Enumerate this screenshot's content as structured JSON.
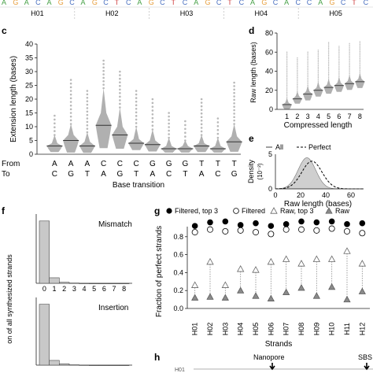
{
  "colors": {
    "axis": "#222222",
    "bar_fill": "#c8c8c8",
    "bar_stroke": "#4a4a4a",
    "outlier": "#b8b8b8",
    "box_fill": "#b0b0b0",
    "median": "#333333",
    "filled_point": "#000000",
    "raw_point": "#8a8a8a",
    "density_fill": "#cfcfcf",
    "seq_orange": "#e8a040",
    "seq_green": "#46a046",
    "seq_blue": "#4a70c0"
  },
  "top_strip": {
    "sequence": "AGACAGCAGCTCAGCTCAGCTCAGCACCAGCTC",
    "labels": [
      "H01",
      "H02",
      "H03",
      "H04",
      "H05"
    ]
  },
  "panel_labels": {
    "c": "c",
    "d": "d",
    "e": "e",
    "f": "f",
    "g": "g",
    "h": "h"
  },
  "chart_data": [
    {
      "id": "c",
      "type": "violin-box",
      "ylabel": "Extension length (bases)",
      "ylim": [
        0,
        40
      ],
      "yticks": [
        0,
        5,
        10,
        15,
        20,
        25,
        30,
        35,
        40
      ],
      "xlabel": "Base transition",
      "row_labels": [
        "From",
        "To"
      ],
      "from": [
        "A",
        "A",
        "A",
        "C",
        "C",
        "C",
        "G",
        "G",
        "G",
        "T",
        "T",
        "T"
      ],
      "to": [
        "C",
        "G",
        "T",
        "A",
        "G",
        "T",
        "A",
        "C",
        "T",
        "A",
        "C",
        "G"
      ],
      "medians": [
        3,
        5,
        3,
        10.5,
        7,
        4,
        3.5,
        2,
        2,
        3,
        2,
        4.5
      ],
      "q1": [
        2,
        3,
        2,
        7,
        5,
        3,
        2.5,
        1.5,
        1.5,
        2,
        1.5,
        3
      ],
      "q3": [
        4,
        7,
        4.5,
        15,
        10,
        5.5,
        5,
        3,
        3,
        4,
        3,
        6.5
      ],
      "p95": [
        7,
        11,
        8,
        24,
        17,
        10,
        9,
        6,
        5,
        7,
        6,
        11
      ],
      "max": [
        14,
        27,
        23,
        34,
        30,
        23,
        20,
        15,
        12,
        20,
        13,
        26
      ]
    },
    {
      "id": "d",
      "type": "violin-box",
      "ylabel": "Raw length (bases)",
      "xlabel": "Compressed length",
      "ylim": [
        0,
        80
      ],
      "yticks": [
        0,
        20,
        40,
        60,
        80
      ],
      "categories": [
        1,
        2,
        3,
        4,
        5,
        6,
        7,
        8
      ],
      "medians": [
        5,
        11,
        16,
        20,
        23,
        25,
        27,
        29
      ],
      "q1": [
        2,
        9,
        13,
        17,
        20,
        22,
        24,
        26
      ],
      "q3": [
        7,
        14,
        19,
        23,
        26,
        28,
        30,
        32
      ],
      "max": [
        60,
        54,
        60,
        62,
        70,
        66,
        69,
        71
      ]
    },
    {
      "id": "e",
      "type": "area",
      "ylabel": "Density",
      "ylabel2": "(10⁻²)",
      "xlabel": "Raw length (bases)",
      "xlim": [
        0,
        70
      ],
      "xticks": [
        0,
        20,
        40,
        60
      ],
      "ylim": [
        0,
        5
      ],
      "yticks": [
        0,
        5
      ],
      "legend": [
        "All",
        "Perfect"
      ],
      "series": [
        {
          "name": "All",
          "peak_x": 25,
          "sd": 7,
          "peak_y": 4.5
        },
        {
          "name": "Perfect",
          "peak_x": 29,
          "sd": 8,
          "peak_y": 4.0
        }
      ]
    },
    {
      "id": "f",
      "type": "bar",
      "ylabel": "on of all synthesized strands",
      "xticks": [
        0,
        1,
        2,
        3,
        4,
        5,
        6,
        7,
        8
      ],
      "subplots": [
        {
          "name": "Mismatch",
          "values": [
            0.9,
            0.08,
            0.015,
            0.004,
            0.001,
            0,
            0,
            0,
            0
          ]
        },
        {
          "name": "Insertion",
          "values": [
            0.9,
            0.07,
            0.02,
            0.005,
            0.002,
            0,
            0,
            0,
            0
          ]
        }
      ]
    },
    {
      "id": "g",
      "type": "scatter",
      "ylabel": "Fraction of perfect strands",
      "xlabel": "Strands",
      "ylim": [
        0,
        1
      ],
      "yticks": [
        0,
        0.2,
        0.4,
        0.6,
        0.8
      ],
      "ytick_labels": [
        "0.0",
        "0.2",
        "0.4",
        "0.6",
        "0.8"
      ],
      "categories": [
        "H01",
        "H02",
        "H03",
        "H04",
        "H05",
        "H06",
        "H07",
        "H08",
        "H09",
        "H10",
        "H11",
        "H12"
      ],
      "series": [
        {
          "name": "Filtered, top 3",
          "marker": "filled-circle",
          "values": [
            0.92,
            0.96,
            0.97,
            0.93,
            0.95,
            0.92,
            0.94,
            0.97,
            0.96,
            0.97,
            0.94,
            0.95
          ]
        },
        {
          "name": "Filtered",
          "marker": "open-circle",
          "values": [
            0.85,
            0.88,
            0.86,
            0.87,
            0.85,
            0.83,
            0.88,
            0.88,
            0.87,
            0.89,
            0.86,
            0.84
          ]
        },
        {
          "name": "Raw, top 3",
          "marker": "open-triangle",
          "values": [
            0.26,
            0.52,
            0.26,
            0.44,
            0.43,
            0.52,
            0.55,
            0.5,
            0.55,
            0.55,
            0.64,
            0.5
          ]
        },
        {
          "name": "Raw",
          "marker": "filled-triangle",
          "values": [
            0.12,
            0.13,
            0.12,
            0.2,
            0.14,
            0.11,
            0.18,
            0.23,
            0.14,
            0.24,
            0.1,
            0.19
          ]
        }
      ]
    }
  ],
  "panel_h": {
    "nanopore_label": "Nanopore",
    "sbs_label": "SBS",
    "left_text": "H01"
  }
}
